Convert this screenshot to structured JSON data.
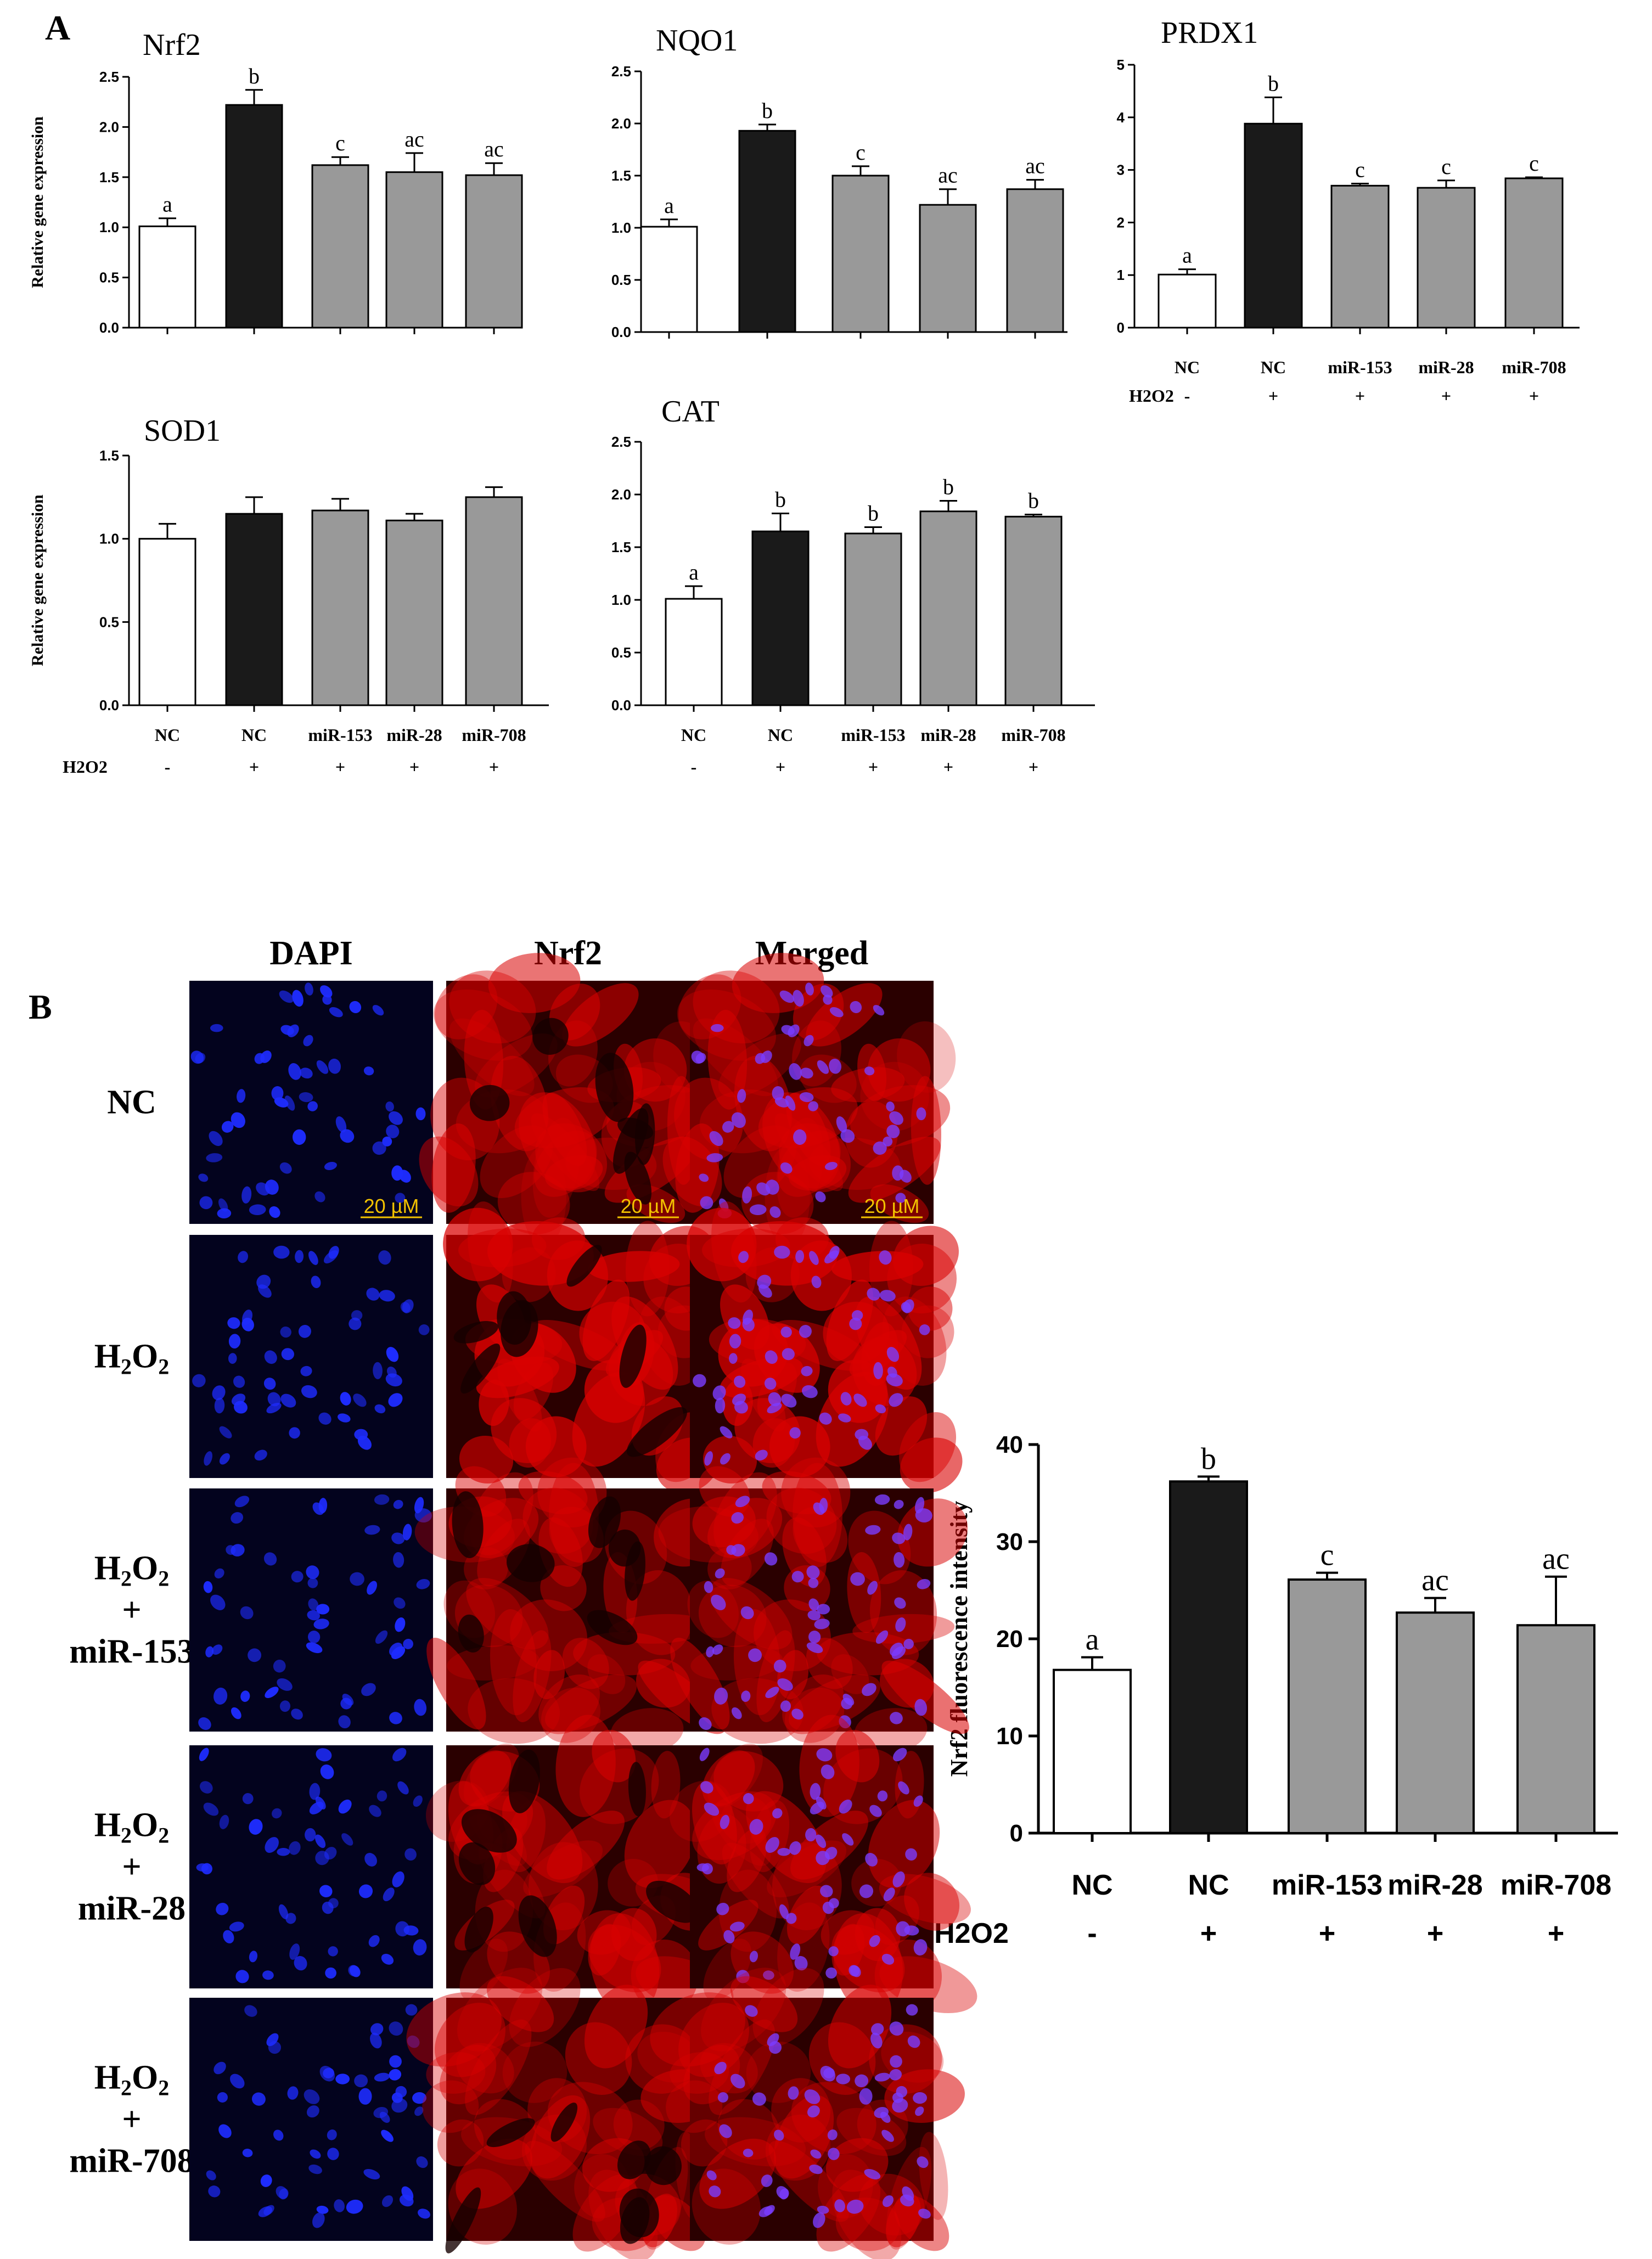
{
  "panel_labels": {
    "a": "A",
    "b": "B"
  },
  "y_axis_label_gene": "Relative gene expression",
  "conditions": {
    "row_label": "H2O2",
    "categories": [
      "NC",
      "NC",
      "miR-153",
      "miR-28",
      "miR-708"
    ],
    "h2o2_marks": [
      "-",
      "+",
      "+",
      "+",
      "+"
    ]
  },
  "colors": {
    "control": "#ffffff",
    "h2o2": "#1a1a1a",
    "mirna": "#999999",
    "scale_bar": "#f2c200"
  },
  "images": {
    "columns": [
      "DAPI",
      "Nrf2",
      "Merged"
    ],
    "rows": [
      {
        "id": "nc",
        "lines": [
          "NC"
        ]
      },
      {
        "id": "h2o2",
        "lines": [
          "H2O2"
        ]
      },
      {
        "id": "h2o2-mir153",
        "lines": [
          "H2O2",
          "+",
          "miR-153"
        ]
      },
      {
        "id": "h2o2-mir28",
        "lines": [
          "H2O2",
          "+",
          "miR-28"
        ]
      },
      {
        "id": "h2o2-mir708",
        "lines": [
          "H2O2",
          "+",
          "miR-708"
        ]
      }
    ],
    "scale_bar_label": "20 µM"
  },
  "chart_data": [
    {
      "id": "nrf2",
      "type": "bar",
      "title": "Nrf2",
      "ylabel": "Relative gene expression",
      "categories": [
        "NC",
        "NC",
        "miR-153",
        "miR-28",
        "miR-708"
      ],
      "values": [
        1.01,
        2.22,
        1.62,
        1.55,
        1.52
      ],
      "errors": [
        0.08,
        0.15,
        0.08,
        0.19,
        0.12
      ],
      "letters": [
        "a",
        "b",
        "c",
        "ac",
        "ac"
      ],
      "ylim": [
        0,
        2.5
      ],
      "yticks": [
        "0.0",
        "0.5",
        "1.0",
        "1.5",
        "2.0",
        "2.5"
      ]
    },
    {
      "id": "nqo1",
      "type": "bar",
      "title": "NQO1",
      "ylabel": "",
      "categories": [
        "NC",
        "NC",
        "miR-153",
        "miR-28",
        "miR-708"
      ],
      "values": [
        1.01,
        1.93,
        1.5,
        1.22,
        1.37
      ],
      "errors": [
        0.07,
        0.06,
        0.09,
        0.15,
        0.09
      ],
      "letters": [
        "a",
        "b",
        "c",
        "ac",
        "ac"
      ],
      "ylim": [
        0,
        2.5
      ],
      "yticks": [
        "0.0",
        "0.5",
        "1.0",
        "1.5",
        "2.0",
        "2.5"
      ]
    },
    {
      "id": "prdx1",
      "type": "bar",
      "title": "PRDX1",
      "ylabel": "",
      "categories": [
        "NC",
        "NC",
        "miR-153",
        "miR-28",
        "miR-708"
      ],
      "values": [
        1.01,
        3.88,
        2.7,
        2.66,
        2.84
      ],
      "errors": [
        0.1,
        0.5,
        0.04,
        0.14,
        0.02
      ],
      "letters": [
        "a",
        "b",
        "c",
        "c",
        "c"
      ],
      "ylim": [
        0,
        5
      ],
      "yticks": [
        "0",
        "1",
        "2",
        "3",
        "4",
        "5"
      ]
    },
    {
      "id": "sod1",
      "type": "bar",
      "title": "SOD1",
      "ylabel": "Relative gene expression",
      "categories": [
        "NC",
        "NC",
        "miR-153",
        "miR-28",
        "miR-708"
      ],
      "values": [
        1.0,
        1.15,
        1.17,
        1.11,
        1.25
      ],
      "errors": [
        0.09,
        0.1,
        0.07,
        0.04,
        0.06
      ],
      "letters": [
        "",
        "",
        "",
        "",
        ""
      ],
      "ylim": [
        0,
        1.5
      ],
      "yticks": [
        "0.0",
        "0.5",
        "1.0",
        "1.5"
      ]
    },
    {
      "id": "cat",
      "type": "bar",
      "title": "CAT",
      "ylabel": "",
      "categories": [
        "NC",
        "NC",
        "miR-153",
        "miR-28",
        "miR-708"
      ],
      "values": [
        1.01,
        1.65,
        1.63,
        1.84,
        1.79
      ],
      "errors": [
        0.12,
        0.17,
        0.06,
        0.1,
        0.02
      ],
      "letters": [
        "a",
        "b",
        "b",
        "b",
        "b"
      ],
      "ylim": [
        0,
        2.5
      ],
      "yticks": [
        "0.0",
        "0.5",
        "1.0",
        "1.5",
        "2.0",
        "2.5"
      ]
    },
    {
      "id": "nrf2-fluor",
      "type": "bar",
      "title": "",
      "ylabel": "Nrf2 fluorescence intensity",
      "categories": [
        "NC",
        "NC",
        "miR-153",
        "miR-28",
        "miR-708"
      ],
      "values": [
        16.8,
        36.2,
        26.1,
        22.7,
        21.4
      ],
      "errors": [
        1.3,
        0.5,
        0.7,
        1.5,
        5.0
      ],
      "letters": [
        "a",
        "b",
        "c",
        "ac",
        "ac"
      ],
      "ylim": [
        0,
        40
      ],
      "yticks": [
        "0",
        "10",
        "20",
        "30",
        "40"
      ]
    }
  ]
}
